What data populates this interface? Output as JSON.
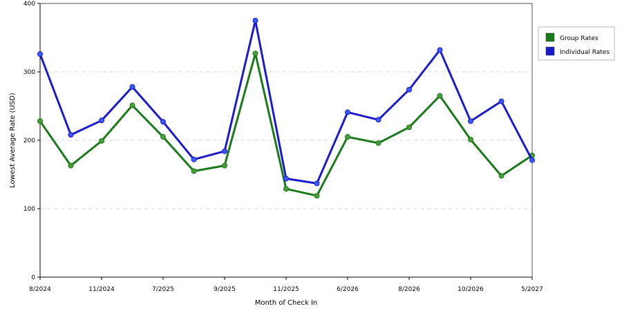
{
  "chart_data": {
    "type": "line",
    "title": "",
    "xlabel": "Month of Check In",
    "ylabel": "Lowest Average Rate (USD)",
    "ylim": [
      0,
      400
    ],
    "yticks": [
      "0",
      "100",
      "200",
      "300",
      "400"
    ],
    "grid": "horizontal dashed",
    "legend_position": "top-right",
    "categories": [
      "8/2024",
      "",
      "11/2024",
      "",
      "7/2025",
      "",
      "9/2025",
      "",
      "11/2025",
      "",
      "6/2026",
      "",
      "8/2026",
      "",
      "10/2026",
      "",
      "5/2027"
    ],
    "series": [
      {
        "name": "Group Rates",
        "color": "#1a7a1a",
        "values": [
          228,
          163,
          199,
          251,
          205,
          155,
          163,
          327,
          129,
          119,
          205,
          196,
          219,
          265,
          201,
          148,
          178
        ]
      },
      {
        "name": "Individual Rates",
        "color": "#1a1acc",
        "values": [
          326,
          208,
          229,
          278,
          227,
          172,
          184,
          375,
          144,
          137,
          241,
          230,
          274,
          332,
          228,
          257,
          171
        ]
      }
    ]
  }
}
